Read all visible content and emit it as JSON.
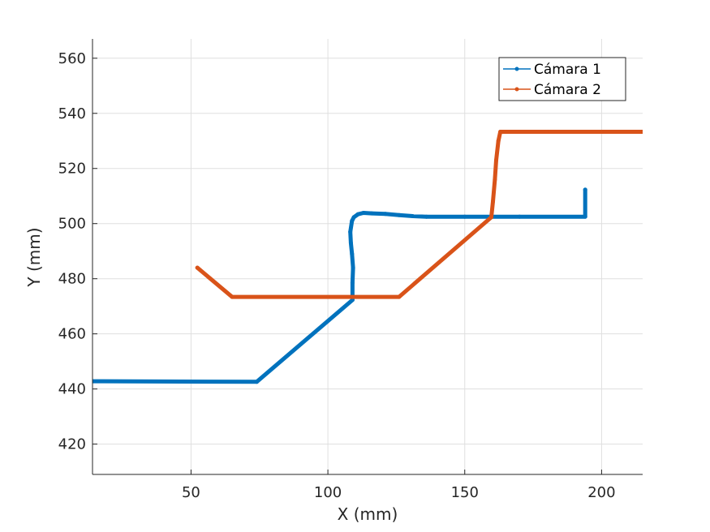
{
  "chart_data": {
    "type": "line",
    "title": "",
    "xlabel": "X (mm)",
    "ylabel": "Y (mm)",
    "xlim": [
      14,
      215
    ],
    "ylim": [
      409,
      567
    ],
    "xticks": [
      50,
      100,
      150,
      200
    ],
    "yticks": [
      420,
      440,
      460,
      480,
      500,
      520,
      540,
      560
    ],
    "grid": true,
    "legend_position": "top-right",
    "series": [
      {
        "name": "Cámara 1",
        "color": "#0072BD",
        "x": [
          14,
          74,
          109,
          109,
          109.2,
          108.8,
          108.4,
          108.2,
          108.8,
          109.5,
          111,
          113,
          116,
          121,
          126,
          131,
          136,
          150,
          170,
          194,
          194
        ],
        "y": [
          442.8,
          442.6,
          472.3,
          478.5,
          484,
          489,
          493,
          497,
          501,
          502.3,
          503.4,
          503.9,
          503.7,
          503.5,
          503.1,
          502.7,
          502.5,
          502.5,
          502.5,
          502.5,
          512.3
        ]
      },
      {
        "name": "Cámara 2",
        "color": "#D95319",
        "x": [
          52.3,
          65,
          126,
          159.7,
          160.3,
          161,
          161.5,
          162.3,
          163,
          180,
          200,
          215
        ],
        "y": [
          484,
          473.4,
          473.4,
          502.3,
          508,
          516,
          523,
          530,
          533.3,
          533.3,
          533.3,
          533.3
        ]
      }
    ]
  }
}
